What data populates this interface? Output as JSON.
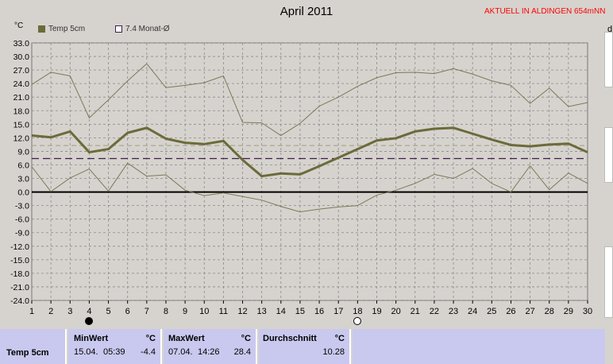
{
  "header": {
    "title": "April 2011",
    "station": "AKTUELL IN ALDINGEN 654mNN",
    "unit": "°C",
    "right_edge_text": "d"
  },
  "legend": [
    {
      "label": "Temp 5cm",
      "color": "#6b6b3a"
    },
    {
      "label": "7.4 Monat-Ø",
      "color": "#3a1f4a"
    }
  ],
  "moon_phases": [
    {
      "day": 4,
      "phase": "new-moon"
    },
    {
      "day": 18,
      "phase": "full-moon"
    }
  ],
  "chart_data": {
    "type": "line",
    "ylabel": "°C",
    "ylim": [
      -24,
      33
    ],
    "yticks": [
      "33.0",
      "30.0",
      "27.0",
      "24.0",
      "21.0",
      "18.0",
      "15.0",
      "12.0",
      "9.0",
      "6.0",
      "3.0",
      "0.0",
      "-3.0",
      "-6.0",
      "-9.0",
      "-12.0",
      "-15.0",
      "-18.0",
      "-21.0",
      "-24.0"
    ],
    "x": [
      1,
      2,
      3,
      4,
      5,
      6,
      7,
      8,
      9,
      10,
      11,
      12,
      13,
      14,
      15,
      16,
      17,
      18,
      19,
      20,
      21,
      22,
      23,
      24,
      25,
      26,
      27,
      28,
      29,
      30
    ],
    "grid": true,
    "series": [
      {
        "name": "Temp 5cm",
        "role": "mean",
        "color": "#6b6b3a",
        "values": [
          12.5,
          12.1,
          13.4,
          8.8,
          9.5,
          13.1,
          14.2,
          11.8,
          10.9,
          10.6,
          11.3,
          7.1,
          3.5,
          4.1,
          3.9,
          5.7,
          7.6,
          9.5,
          11.4,
          11.9,
          13.4,
          14.0,
          14.2,
          12.9,
          11.6,
          10.4,
          10.1,
          10.5,
          10.7,
          8.8
        ]
      },
      {
        "role": "max",
        "color": "#7a7a5a",
        "values": [
          23.8,
          26.5,
          25.7,
          16.4,
          20.4,
          24.6,
          28.4,
          23.1,
          23.6,
          24.2,
          25.7,
          15.4,
          15.3,
          12.5,
          15.2,
          19.0,
          21.0,
          23.4,
          25.3,
          26.4,
          26.5,
          26.2,
          27.3,
          26.1,
          24.6,
          23.6,
          19.6,
          23.0,
          18.9,
          19.8
        ]
      },
      {
        "role": "min",
        "color": "#7a7a5a",
        "values": [
          5.6,
          0.1,
          3.1,
          5.1,
          0.2,
          6.4,
          3.5,
          3.8,
          0.4,
          -0.8,
          -0.2,
          -1.0,
          -1.8,
          -3.2,
          -4.4,
          -3.8,
          -3.3,
          -3.0,
          -0.7,
          0.4,
          1.9,
          3.9,
          3.0,
          5.2,
          1.9,
          0.0,
          5.8,
          0.5,
          4.2,
          1.9
        ]
      }
    ],
    "reference_lines": [
      {
        "value": 7.4,
        "color": "#3a1f4a",
        "style": "dashed"
      },
      {
        "value": 10.28,
        "color": "#a8a890",
        "style": "dashed"
      },
      {
        "value": 0,
        "color": "#000000",
        "style": "solid"
      }
    ]
  },
  "table": {
    "row_label": "Temp 5cm",
    "min": {
      "header": "MinWert",
      "unit": "°C",
      "date": "15.04.",
      "time": "05:39",
      "value": "-4.4"
    },
    "max": {
      "header": "MaxWert",
      "unit": "°C",
      "date": "07.04.",
      "time": "14:26",
      "value": "28.4"
    },
    "avg": {
      "header": "Durchschnitt",
      "unit": "°C",
      "value": "10.28"
    }
  }
}
